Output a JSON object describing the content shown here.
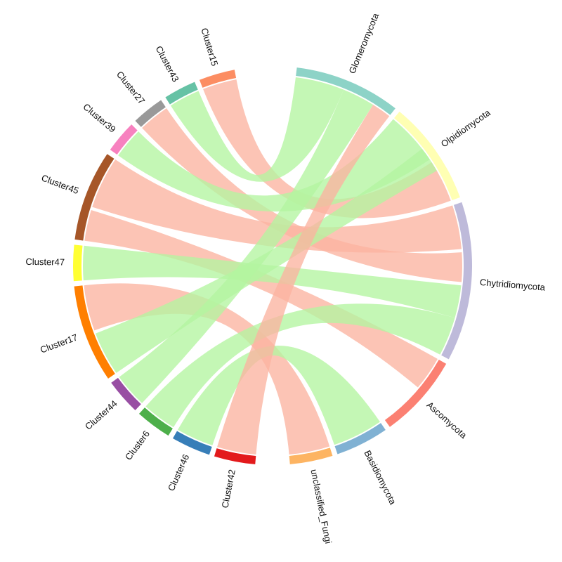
{
  "sectors": [
    {
      "id": "glomeromycota",
      "label": "Glomeromycota",
      "color": "#8dd3c7",
      "side": "right"
    },
    {
      "id": "olpidiomycota",
      "label": "Olpidiomycota",
      "color": "#ffffb3",
      "side": "right"
    },
    {
      "id": "chytridiomycota",
      "label": "Chytridiomycota",
      "color": "#bebada",
      "side": "right"
    },
    {
      "id": "ascomycota",
      "label": "Ascomycota",
      "color": "#fb8072",
      "side": "right"
    },
    {
      "id": "basidiomycota",
      "label": "Basidiomycota",
      "color": "#80b1d3",
      "side": "right"
    },
    {
      "id": "unclassified_fungi",
      "label": "unclassified_Fungi",
      "color": "#fdb462",
      "side": "right"
    },
    {
      "id": "cluster42",
      "label": "Cluster42",
      "color": "#e31a1c",
      "side": "left"
    },
    {
      "id": "cluster46",
      "label": "Cluster46",
      "color": "#377eb8",
      "side": "left"
    },
    {
      "id": "cluster6",
      "label": "Cluster6",
      "color": "#4daf4a",
      "side": "left"
    },
    {
      "id": "cluster44",
      "label": "Cluster44",
      "color": "#984ea3",
      "side": "left"
    },
    {
      "id": "cluster17",
      "label": "Cluster17",
      "color": "#ff7f00",
      "side": "left"
    },
    {
      "id": "cluster47",
      "label": "Cluster47",
      "color": "#ffff33",
      "side": "left"
    },
    {
      "id": "cluster45",
      "label": "Cluster45",
      "color": "#a65628",
      "side": "left"
    },
    {
      "id": "cluster39",
      "label": "Cluster39",
      "color": "#f781bf",
      "side": "left"
    },
    {
      "id": "cluster27",
      "label": "Cluster27",
      "color": "#999999",
      "side": "left"
    },
    {
      "id": "cluster43",
      "label": "Cluster43",
      "color": "#66c2a5",
      "side": "left"
    },
    {
      "id": "cluster15",
      "label": "Cluster15",
      "color": "#fc8d62",
      "side": "left"
    }
  ],
  "link_colors": {
    "positive": "#b4f5a0",
    "negative": "#fbb4a0"
  },
  "links": [
    {
      "from": "cluster15",
      "to": "olpidiomycota",
      "sign": "negative"
    },
    {
      "from": "cluster43",
      "to": "glomeromycota",
      "sign": "positive"
    },
    {
      "from": "cluster27",
      "to": "chytridiomycota",
      "sign": "negative"
    },
    {
      "from": "cluster39",
      "to": "olpidiomycota",
      "sign": "positive"
    },
    {
      "from": "cluster45",
      "to": "chytridiomycota",
      "sign": "negative"
    },
    {
      "from": "cluster45",
      "to": "ascomycota",
      "sign": "negative"
    },
    {
      "from": "cluster47",
      "to": "chytridiomycota",
      "sign": "positive"
    },
    {
      "from": "cluster17",
      "to": "unclassified_fungi",
      "sign": "negative"
    },
    {
      "from": "cluster17",
      "to": "olpidiomycota",
      "sign": "positive"
    },
    {
      "from": "cluster44",
      "to": "glomeromycota",
      "sign": "positive"
    },
    {
      "from": "cluster6",
      "to": "chytridiomycota",
      "sign": "positive"
    },
    {
      "from": "cluster46",
      "to": "basidiomycota",
      "sign": "positive"
    },
    {
      "from": "cluster42",
      "to": "glomeromycota",
      "sign": "negative"
    }
  ]
}
